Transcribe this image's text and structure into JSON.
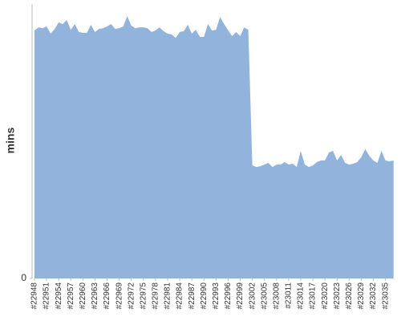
{
  "chart_data": {
    "type": "area",
    "y_label": "mins",
    "color": "#91b3dc",
    "categories": [
      "#22948",
      null,
      null,
      "#22951",
      null,
      null,
      "#22954",
      null,
      null,
      "#22957",
      null,
      null,
      "#22960",
      null,
      null,
      "#22963",
      null,
      null,
      "#22966",
      null,
      null,
      "#22969",
      null,
      null,
      "#22972",
      null,
      null,
      "#22975",
      null,
      null,
      "#22978",
      null,
      null,
      "#22981",
      null,
      null,
      "#22984",
      null,
      null,
      "#22987",
      null,
      null,
      "#22990",
      null,
      null,
      "#22993",
      null,
      null,
      "#22996",
      null,
      null,
      "#22999",
      null,
      null,
      "#23002",
      null,
      null,
      "#23005",
      null,
      null,
      "#23008",
      null,
      null,
      "#23011",
      null,
      null,
      "#23014",
      null,
      null,
      "#23017",
      null,
      null,
      "#23020",
      null,
      null,
      "#23023",
      null,
      null,
      "#23026",
      null,
      null,
      "#23029",
      null,
      null,
      "#23032",
      null,
      null,
      "#23035",
      null,
      null
    ],
    "values": [
      90.4,
      91.5,
      91.2,
      91.8,
      89.2,
      90.9,
      93.3,
      92.7,
      94.2,
      90.6,
      92.7,
      89.8,
      89.5,
      89.5,
      92.4,
      89.8,
      90.9,
      91.2,
      91.8,
      92.7,
      90.9,
      91.2,
      91.8,
      95.6,
      92.1,
      91.2,
      91.5,
      91.5,
      91.2,
      89.8,
      90.4,
      91.5,
      90.1,
      89.2,
      88.9,
      87.7,
      89.8,
      90.1,
      92.4,
      89.2,
      90.6,
      88.0,
      88.0,
      92.7,
      90.4,
      90.6,
      95.3,
      92.7,
      90.4,
      88.3,
      89.8,
      88.3,
      91.5,
      90.6,
      41.2,
      40.6,
      40.9,
      41.5,
      42.1,
      40.6,
      41.5,
      41.5,
      42.4,
      41.5,
      41.8,
      40.6,
      46.5,
      41.5,
      40.6,
      41.2,
      42.4,
      43.0,
      43.0,
      45.9,
      46.5,
      43.0,
      45.0,
      42.1,
      41.5,
      41.8,
      42.4,
      44.2,
      47.1,
      44.7,
      43.0,
      42.1,
      46.5,
      43.0,
      42.7,
      43.0
    ],
    "ylim": [
      0,
      100
    ],
    "yticks": [
      0
    ]
  }
}
